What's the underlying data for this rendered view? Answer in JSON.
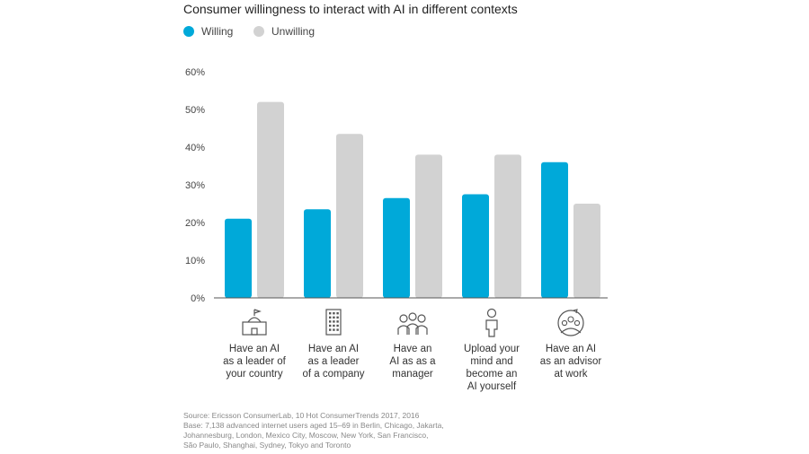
{
  "chart_data": {
    "type": "bar",
    "title": "Consumer willingness to interact with AI in different contexts",
    "categories": [
      "Have an AI\nas a leader of\nyour country",
      "Have an AI\nas a leader\nof a company",
      "Have an\nAI as as a\nmanager",
      "Upload your\nmind and\nbecome an\nAI yourself",
      "Have an AI\nas an advisor\nat work"
    ],
    "category_icons": [
      "government-building-icon",
      "office-building-icon",
      "team-icon",
      "person-icon",
      "advisor-group-icon"
    ],
    "series": [
      {
        "name": "Willing",
        "color": "#00a9d9",
        "values": [
          21,
          23.5,
          26.5,
          27.5,
          36
        ]
      },
      {
        "name": "Unwilling",
        "color": "#d2d2d2",
        "values": [
          52,
          43.5,
          38,
          38,
          25
        ]
      }
    ],
    "ylim": [
      0,
      60
    ],
    "yticks": [
      "0%",
      "10%",
      "20%",
      "30%",
      "40%",
      "50%",
      "60%"
    ],
    "xlabel": "",
    "ylabel": "",
    "legend_position": "top-left",
    "grid": false
  },
  "source": "Source: Ericsson ConsumerLab, 10 Hot ConsumerTrends 2017, 2016\nBase: 7,138 advanced internet users aged 15–69 in Berlin, Chicago, Jakarta,\nJohannesburg, London, Mexico City, Moscow, New York, San Francisco,\nSão Paulo, Shanghai, Sydney, Tokyo and Toronto"
}
